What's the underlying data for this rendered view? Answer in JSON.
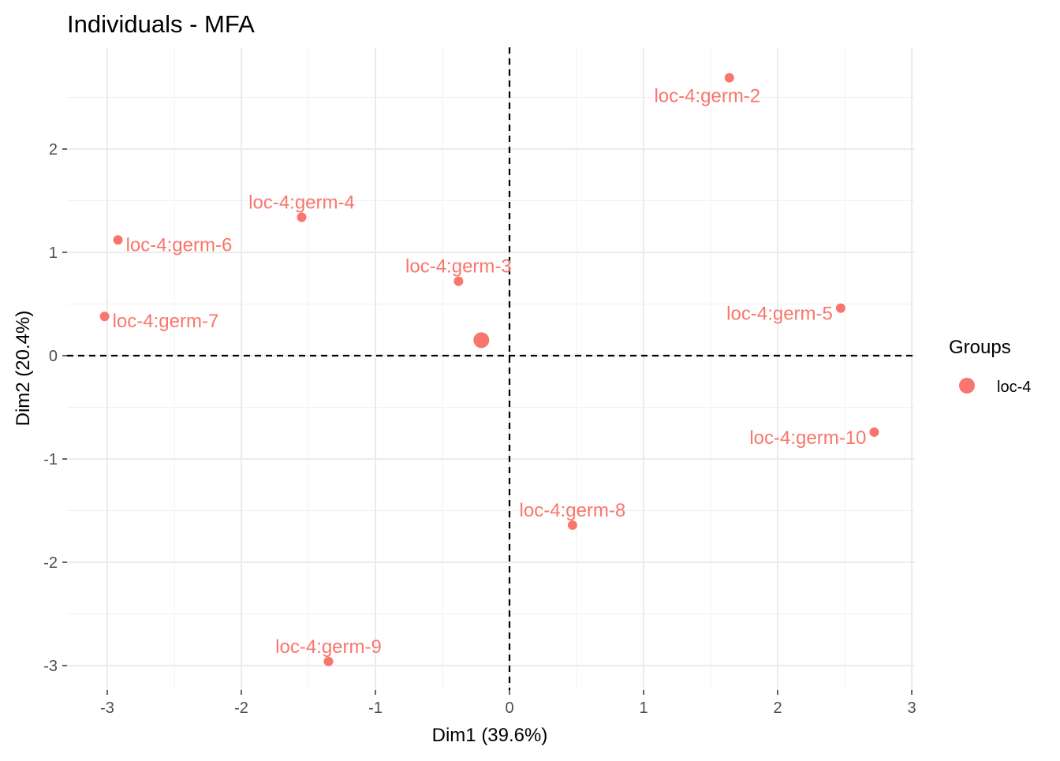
{
  "chart_data": {
    "type": "scatter",
    "title": "Individuals - MFA",
    "xlabel": "Dim1 (39.6%)",
    "ylabel": "Dim2 (20.4%)",
    "xlim": [
      -3.3,
      3.0
    ],
    "ylim": [
      -3.23,
      2.87
    ],
    "x_ticks": [
      -3,
      -2,
      -1,
      0,
      1,
      2,
      3
    ],
    "y_ticks": [
      -3,
      -2,
      -1,
      0,
      1,
      2
    ],
    "x_tick_labels": [
      "-3",
      "-2",
      "-1",
      "0",
      "1",
      "2",
      "3"
    ],
    "y_tick_labels": [
      "-3",
      "-2",
      "-1",
      "0",
      "1",
      "2"
    ],
    "grid": true,
    "reference_lines": {
      "x": 0,
      "y": 0,
      "style": "dashed"
    },
    "color": "#F8766D",
    "legend": {
      "title": "Groups",
      "position": "right",
      "entries": [
        "loc-4"
      ]
    },
    "points": [
      {
        "label": "loc-4:germ-2",
        "x": 1.64,
        "y": 2.69,
        "label_pos": "below"
      },
      {
        "label": "loc-4:germ-4",
        "x": -1.55,
        "y": 1.34,
        "label_pos": "above"
      },
      {
        "label": "loc-4:germ-6",
        "x": -2.92,
        "y": 1.12,
        "label_pos": "right"
      },
      {
        "label": "loc-4:germ-3",
        "x": -0.38,
        "y": 0.72,
        "label_pos": "above"
      },
      {
        "label": "loc-4:germ-7",
        "x": -3.02,
        "y": 0.38,
        "label_pos": "right"
      },
      {
        "label": "loc-4:germ-5",
        "x": 2.47,
        "y": 0.46,
        "label_pos": "left"
      },
      {
        "label": "loc-4:germ-10",
        "x": 2.72,
        "y": -0.74,
        "label_pos": "left"
      },
      {
        "label": "loc-4:germ-8",
        "x": 0.47,
        "y": -1.64,
        "label_pos": "above"
      },
      {
        "label": "loc-4:germ-9",
        "x": -1.35,
        "y": -2.96,
        "label_pos": "above"
      }
    ],
    "group_centroid": {
      "group": "loc-4",
      "x": -0.21,
      "y": 0.15
    }
  }
}
